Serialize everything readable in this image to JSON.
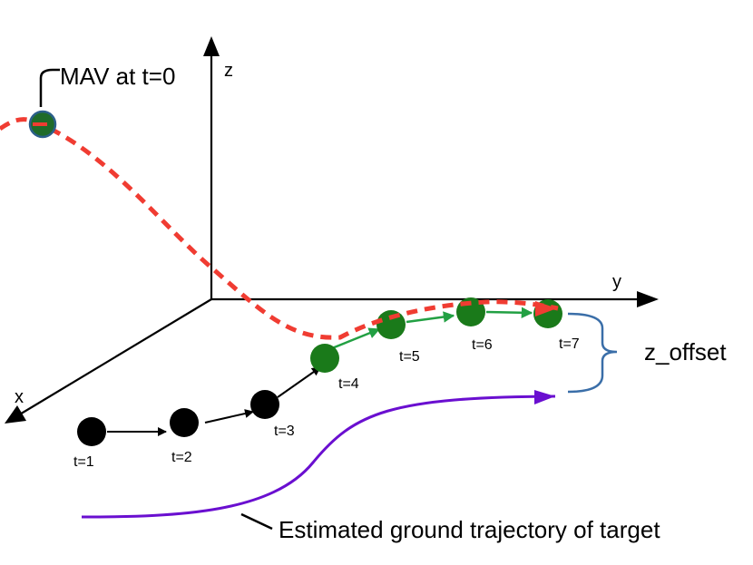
{
  "axes": {
    "x_label": "x",
    "y_label": "y",
    "z_label": "z"
  },
  "mav_label": "MAV at t=0",
  "z_offset_label": "z_offset",
  "ground_trajectory_label": "Estimated ground trajectory of target",
  "black_points": [
    {
      "label": "t=1"
    },
    {
      "label": "t=2"
    },
    {
      "label": "t=3"
    }
  ],
  "green_points": [
    {
      "label": "t=4"
    },
    {
      "label": "t=5"
    },
    {
      "label": "t=6"
    },
    {
      "label": "t=7"
    }
  ],
  "colors": {
    "mav_path": "#f03c32",
    "green_node": "#1a7a1a",
    "green_arrow": "#22a043",
    "ground_path": "#6a0fd0",
    "brace": "#3a6ea8",
    "mav_fill": "#1f6b2a",
    "mav_stroke": "#2b5f8a"
  }
}
